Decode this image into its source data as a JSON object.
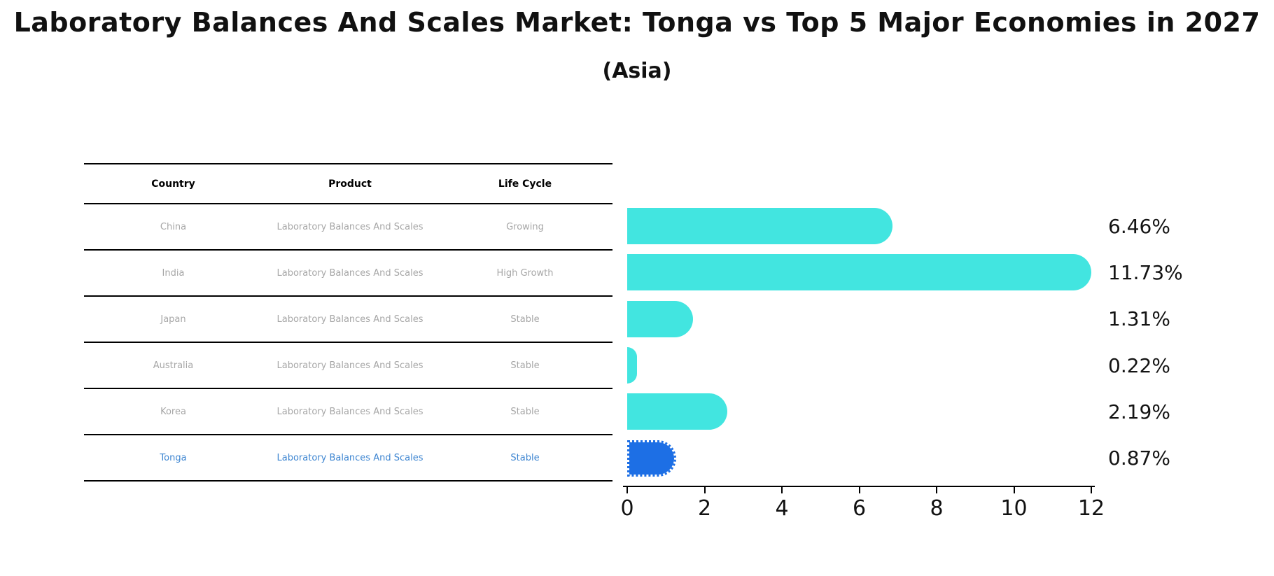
{
  "title": "Laboratory Balances And Scales Market: Tonga vs Top 5 Major Economies in 2027",
  "subtitle": "(Asia)",
  "table": {
    "headers": [
      "Country",
      "Product",
      "Life Cycle"
    ],
    "rows": [
      {
        "country": "China",
        "product": "Laboratory Balances And Scales",
        "life_cycle": "Growing",
        "highlight": false
      },
      {
        "country": "India",
        "product": "Laboratory Balances And Scales",
        "life_cycle": "High Growth",
        "highlight": false
      },
      {
        "country": "Japan",
        "product": "Laboratory Balances And Scales",
        "life_cycle": "Stable",
        "highlight": false
      },
      {
        "country": "Australia",
        "product": "Laboratory Balances And Scales",
        "life_cycle": "Stable",
        "highlight": false
      },
      {
        "country": "Korea",
        "product": "Laboratory Balances And Scales",
        "life_cycle": "Stable",
        "highlight": false
      },
      {
        "country": "Tonga",
        "product": "Laboratory Balances And Scales",
        "life_cycle": "Stable",
        "highlight": true
      }
    ]
  },
  "chart_data": {
    "type": "bar",
    "orientation": "horizontal",
    "title": "Laboratory Balances And Scales Market: Tonga vs Top 5 Major Economies in 2027 (Asia)",
    "categories": [
      "China",
      "India",
      "Japan",
      "Australia",
      "Korea",
      "Tonga"
    ],
    "values": [
      6.46,
      11.73,
      1.31,
      0.22,
      2.19,
      0.87
    ],
    "labels": [
      "6.46%",
      "11.73%",
      "1.31%",
      "0.22%",
      "2.19%",
      "0.87%"
    ],
    "xlabel": "",
    "ylabel": "",
    "xlim": [
      0,
      12
    ],
    "xticks": [
      0,
      2,
      4,
      6,
      8,
      10,
      12
    ],
    "grid": false,
    "legend": false,
    "highlight_index": 5,
    "bar_color_default": "#42e5e0",
    "bar_color_highlight": "#1d6fe5"
  },
  "colors": {
    "background": "#ffffff",
    "title_text": "#111111",
    "table_line": "#000000",
    "table_text": "#a6a6a6",
    "highlight_text": "#3d85d1",
    "bar_cyan": "#42e5e0",
    "bar_blue": "#1d6fe5",
    "axis": "#000000"
  }
}
